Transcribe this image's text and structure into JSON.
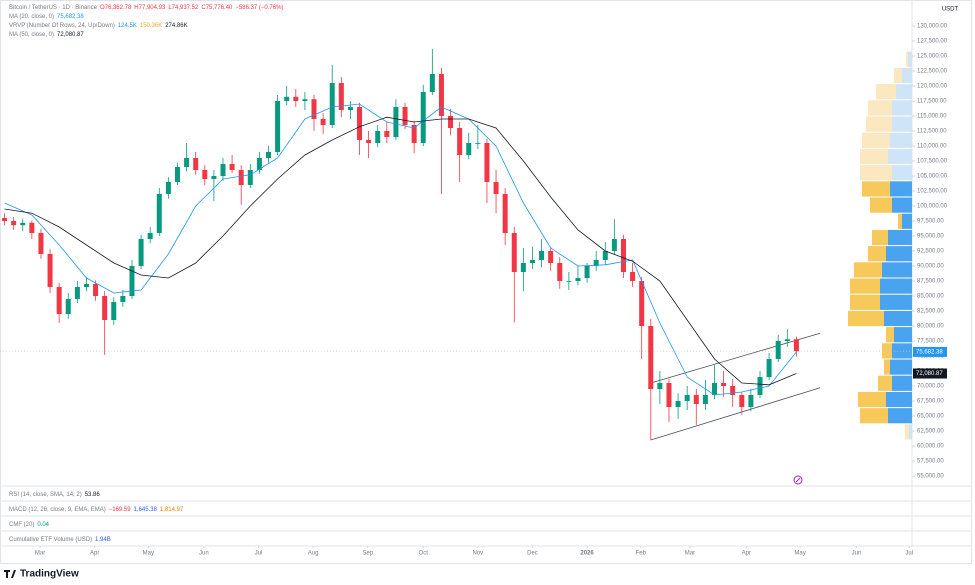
{
  "chart_data": {
    "type": "candlestick",
    "symbol": "Bitcoin / TetherUS · 1D · Binance",
    "ohlc_labels": [
      {
        "text": "O76,362.78",
        "color": "#f23645"
      },
      {
        "text": "H77,904.93",
        "color": "#f23645"
      },
      {
        "text": "L74,937.52",
        "color": "#f23645"
      },
      {
        "text": "C75,776.40",
        "color": "#f23645"
      },
      {
        "text": "−586.37 (−0.76%)",
        "color": "#f23645"
      }
    ],
    "y_unit": "USDT",
    "up_color": "#089981",
    "down_color": "#f23645",
    "xlim": [
      -0.5,
      99.7
    ],
    "xticks": [
      {
        "value": 3.9,
        "label": "Mar"
      },
      {
        "value": 9.9,
        "label": "Apr"
      },
      {
        "value": 15.8,
        "label": "May"
      },
      {
        "value": 21.9,
        "label": "Jun"
      },
      {
        "value": 27.9,
        "label": "Jul"
      },
      {
        "value": 33.9,
        "label": "Aug"
      },
      {
        "value": 39.9,
        "label": "Sep"
      },
      {
        "value": 46,
        "label": "Oct"
      },
      {
        "value": 52,
        "label": "Nov"
      },
      {
        "value": 58,
        "label": "Dec"
      },
      {
        "value": 64,
        "label": "2026"
      },
      {
        "value": 69.9,
        "label": "Feb"
      },
      {
        "value": 75.3,
        "label": "Mar"
      },
      {
        "value": 81.5,
        "label": "Apr"
      },
      {
        "value": 87.4,
        "label": "May"
      },
      {
        "value": 93.6,
        "label": "Jun"
      },
      {
        "value": 99.4,
        "label": "Jul"
      }
    ],
    "ylim": [
      53750,
      131250
    ],
    "yticks": [
      {
        "value": 130000,
        "label": "130,000.00"
      },
      {
        "value": 127500,
        "label": "127,500.00"
      },
      {
        "value": 125000,
        "label": "125,000.00"
      },
      {
        "value": 122500,
        "label": "122,500.00"
      },
      {
        "value": 120000,
        "label": "120,000.00"
      },
      {
        "value": 117500,
        "label": "117,500.00"
      },
      {
        "value": 115000,
        "label": "115,000.00"
      },
      {
        "value": 112500,
        "label": "112,500.00"
      },
      {
        "value": 110000,
        "label": "110,000.00"
      },
      {
        "value": 107500,
        "label": "107,500.00"
      },
      {
        "value": 105000,
        "label": "105,000.00"
      },
      {
        "value": 102500,
        "label": "102,500.00"
      },
      {
        "value": 100000,
        "label": "100,000.00"
      },
      {
        "value": 97500,
        "label": "97,500.00"
      },
      {
        "value": 95000,
        "label": "95,000.00"
      },
      {
        "value": 92500,
        "label": "92,500.00"
      },
      {
        "value": 90000,
        "label": "90,000.00"
      },
      {
        "value": 87500,
        "label": "87,500.00"
      },
      {
        "value": 85000,
        "label": "85,000.00"
      },
      {
        "value": 82500,
        "label": "82,500.00"
      },
      {
        "value": 80000,
        "label": "80,000.00"
      },
      {
        "value": 77500,
        "label": "77,500.00"
      },
      {
        "value": 75000,
        "label": "75,000.00"
      },
      {
        "value": 72500,
        "label": "72,500.00"
      },
      {
        "value": 70000,
        "label": "70,000.00"
      },
      {
        "value": 67500,
        "label": "67,500.00"
      },
      {
        "value": 65000,
        "label": "65,000.00"
      },
      {
        "value": 62500,
        "label": "62,500.00"
      },
      {
        "value": 60000,
        "label": "60,000.00"
      },
      {
        "value": 57500,
        "label": "57,500.00"
      },
      {
        "value": 55000,
        "label": "55,000.00"
      }
    ],
    "candles": [
      [
        98000,
        98800,
        96800,
        97500
      ],
      [
        97500,
        98200,
        96000,
        96800
      ],
      [
        96800,
        97900,
        95800,
        97200
      ],
      [
        97200,
        97600,
        94500,
        95500
      ],
      [
        95500,
        96200,
        91200,
        92000
      ],
      [
        92000,
        92800,
        85500,
        86500
      ],
      [
        86500,
        87200,
        80500,
        82000
      ],
      [
        82000,
        85500,
        81200,
        84500
      ],
      [
        84500,
        87500,
        83800,
        86500
      ],
      [
        86500,
        88200,
        85800,
        87000
      ],
      [
        87000,
        87600,
        84200,
        85000
      ],
      [
        85000,
        85800,
        75200,
        81000
      ],
      [
        81000,
        84800,
        80200,
        84000
      ],
      [
        84000,
        86000,
        83200,
        85000
      ],
      [
        85000,
        91000,
        84500,
        90000
      ],
      [
        90000,
        95200,
        89500,
        94500
      ],
      [
        94500,
        96500,
        93800,
        95500
      ],
      [
        95500,
        103000,
        95000,
        102000
      ],
      [
        102000,
        104800,
        101200,
        104000
      ],
      [
        104000,
        107200,
        103500,
        106500
      ],
      [
        106500,
        110500,
        105800,
        108000
      ],
      [
        108000,
        109000,
        105200,
        106000
      ],
      [
        106000,
        106800,
        103500,
        104500
      ],
      [
        104500,
        106000,
        100800,
        105000
      ],
      [
        105000,
        108000,
        104200,
        107000
      ],
      [
        107000,
        108500,
        105500,
        106000
      ],
      [
        106000,
        106800,
        100200,
        103500
      ],
      [
        103500,
        107000,
        103000,
        106000
      ],
      [
        106000,
        109000,
        105400,
        108000
      ],
      [
        108000,
        110000,
        107200,
        109000
      ],
      [
        109000,
        118500,
        108500,
        117500
      ],
      [
        117500,
        120000,
        116800,
        118200
      ],
      [
        118200,
        119500,
        116500,
        117500
      ],
      [
        117500,
        119000,
        116000,
        117800
      ],
      [
        117800,
        118500,
        112500,
        114500
      ],
      [
        114500,
        115500,
        112000,
        113500
      ],
      [
        113500,
        123500,
        113000,
        120500
      ],
      [
        120500,
        121500,
        114800,
        116000
      ],
      [
        116000,
        117500,
        114500,
        116500
      ],
      [
        116500,
        117200,
        108500,
        111000
      ],
      [
        111000,
        112500,
        108000,
        110500
      ],
      [
        110500,
        113500,
        109800,
        112500
      ],
      [
        112500,
        114000,
        110500,
        111500
      ],
      [
        111500,
        117800,
        111000,
        116500
      ],
      [
        116500,
        117200,
        112800,
        113500
      ],
      [
        113500,
        114200,
        108800,
        110500
      ],
      [
        110500,
        120200,
        110000,
        119000
      ],
      [
        119000,
        126200,
        118500,
        122000
      ],
      [
        122000,
        123000,
        102000,
        115000
      ],
      [
        115000,
        116200,
        111800,
        113000
      ],
      [
        113000,
        114000,
        104000,
        108500
      ],
      [
        108500,
        112200,
        107800,
        110500
      ],
      [
        110500,
        113500,
        109500,
        110500
      ],
      [
        110500,
        111200,
        100500,
        104000
      ],
      [
        104000,
        106000,
        98800,
        102000
      ],
      [
        102000,
        103000,
        93500,
        95500
      ],
      [
        95500,
        96500,
        80600,
        89000
      ],
      [
        89000,
        93000,
        85800,
        90500
      ],
      [
        90500,
        93200,
        89500,
        91000
      ],
      [
        91000,
        94500,
        89800,
        92500
      ],
      [
        92500,
        93200,
        89200,
        90500
      ],
      [
        90500,
        91500,
        86200,
        87500
      ],
      [
        87500,
        89000,
        86000,
        87500
      ],
      [
        87500,
        90000,
        86800,
        88000
      ],
      [
        88000,
        90500,
        87200,
        90000
      ],
      [
        90000,
        92500,
        89200,
        91000
      ],
      [
        91000,
        94000,
        90200,
        92500
      ],
      [
        92500,
        97800,
        92000,
        94500
      ],
      [
        94500,
        95200,
        88000,
        89000
      ],
      [
        89000,
        90500,
        86500,
        87500
      ],
      [
        87500,
        88200,
        74500,
        80000
      ],
      [
        80000,
        81200,
        61000,
        69500
      ],
      [
        69500,
        72500,
        67000,
        70500
      ],
      [
        70500,
        71200,
        64000,
        66500
      ],
      [
        66500,
        68800,
        64500,
        67500
      ],
      [
        67500,
        70000,
        66000,
        68500
      ],
      [
        68500,
        69500,
        63500,
        67000
      ],
      [
        67000,
        71000,
        66000,
        68500
      ],
      [
        68500,
        73500,
        67800,
        70500
      ],
      [
        70500,
        72500,
        68200,
        70000
      ],
      [
        70000,
        71200,
        66500,
        68500
      ],
      [
        68500,
        69000,
        65200,
        66500
      ],
      [
        66500,
        69500,
        65800,
        68500
      ],
      [
        68500,
        72500,
        68000,
        71500
      ],
      [
        71500,
        75500,
        71000,
        74500
      ],
      [
        74500,
        78500,
        74000,
        77500
      ],
      [
        77500,
        79500,
        76500,
        77800
      ],
      [
        77800,
        78200,
        74900,
        75800
      ]
    ],
    "series": [
      {
        "name": "MA (20, close, 0)",
        "color": "#2196f3",
        "last_label": "75,682.38",
        "x": [
          0,
          3,
          6,
          9,
          12,
          15,
          18,
          21,
          24,
          27,
          30,
          33,
          36,
          39,
          42,
          45,
          48,
          51,
          54,
          57,
          60,
          63,
          66,
          69,
          72,
          75,
          78,
          81,
          84,
          87
        ],
        "values": [
          100500,
          98500,
          93500,
          88000,
          85500,
          86000,
          92000,
          100000,
          104500,
          105200,
          108000,
          114500,
          116500,
          117000,
          114000,
          113000,
          116500,
          114500,
          110000,
          100500,
          93000,
          90000,
          90200,
          91000,
          80500,
          71500,
          68500,
          69000,
          70000,
          75682.38
        ]
      },
      {
        "name": "MA (50, close, 0)",
        "color": "#131722",
        "last_label": "72,080.87",
        "x": [
          0,
          3,
          6,
          9,
          12,
          15,
          18,
          21,
          24,
          27,
          30,
          33,
          36,
          39,
          42,
          45,
          48,
          51,
          54,
          57,
          60,
          63,
          66,
          69,
          72,
          75,
          78,
          81,
          84,
          87
        ],
        "values": [
          99500,
          98800,
          96500,
          93500,
          90500,
          88500,
          88000,
          90500,
          95000,
          100000,
          104500,
          108500,
          111000,
          113200,
          114800,
          114000,
          114500,
          114500,
          113000,
          107500,
          101500,
          96000,
          92500,
          90800,
          87500,
          81000,
          74500,
          70500,
          70200,
          72080.87
        ]
      }
    ],
    "trendlines": [
      {
        "x": [
          71,
          89.6
        ],
        "values": [
          70500,
          78800
        ]
      },
      {
        "x": [
          71,
          89.6
        ],
        "values": [
          61000,
          69700
        ]
      }
    ],
    "volume_profile": {
      "name": "VRVP (Number Of Rows, 24, Up/Down)",
      "value_labels": [
        {
          "text": "124.5K",
          "color": "#2196f3"
        },
        {
          "text": "150.36K",
          "color": "#f5a623"
        },
        {
          "text": "274.86K",
          "color": "#131722"
        }
      ],
      "row_height": 2700,
      "value_area": [
        63700,
        104200
      ],
      "up_color": "#4aa3ef",
      "down_color": "#f7c85a",
      "up_color_outside": "#cfe4f7",
      "down_color_outside": "#fbe7c0",
      "rows": [
        {
          "price": 61000,
          "up": 3,
          "down": 4
        },
        {
          "price": 63700,
          "up": 24,
          "down": 28
        },
        {
          "price": 66400,
          "up": 26,
          "down": 28
        },
        {
          "price": 69100,
          "up": 20,
          "down": 14
        },
        {
          "price": 71800,
          "up": 22,
          "down": 6
        },
        {
          "price": 74500,
          "up": 20,
          "down": 10
        },
        {
          "price": 77200,
          "up": 18,
          "down": 8
        },
        {
          "price": 79900,
          "up": 28,
          "down": 36
        },
        {
          "price": 82600,
          "up": 32,
          "down": 30
        },
        {
          "price": 85300,
          "up": 32,
          "down": 30
        },
        {
          "price": 88000,
          "up": 30,
          "down": 28
        },
        {
          "price": 90700,
          "up": 26,
          "down": 18
        },
        {
          "price": 93400,
          "up": 24,
          "down": 16
        },
        {
          "price": 96100,
          "up": 10,
          "down": 4
        },
        {
          "price": 98800,
          "up": 20,
          "down": 22
        },
        {
          "price": 101500,
          "up": 22,
          "down": 28
        },
        {
          "price": 104200,
          "up": 20,
          "down": 32
        },
        {
          "price": 106900,
          "up": 24,
          "down": 28
        },
        {
          "price": 109600,
          "up": 22,
          "down": 28
        },
        {
          "price": 112300,
          "up": 20,
          "down": 26
        },
        {
          "price": 115000,
          "up": 20,
          "down": 24
        },
        {
          "price": 117700,
          "up": 16,
          "down": 20
        },
        {
          "price": 120400,
          "up": 10,
          "down": 8
        },
        {
          "price": 123100,
          "up": 4,
          "down": 2
        }
      ]
    },
    "panes": [
      {
        "label": "RSI (14, close, SMA, 14, 2)",
        "values": [
          {
            "text": "53.86",
            "color": "#131722"
          }
        ]
      },
      {
        "label": "MACD (12, 26, close, 9, EMA, EMA)",
        "values": [
          {
            "text": "−169.59",
            "color": "#f23645"
          },
          {
            "text": "1,645.38",
            "color": "#2962ff"
          },
          {
            "text": "1,814.97",
            "color": "#f57c00"
          }
        ]
      },
      {
        "label": "CMF (20)",
        "values": [
          {
            "text": "0.04",
            "color": "#089981"
          }
        ]
      },
      {
        "label": "Cumulative ETF Volume (USD)",
        "values": [
          {
            "text": "1.94B",
            "color": "#2962ff"
          }
        ]
      }
    ],
    "brand": "TradingView"
  }
}
